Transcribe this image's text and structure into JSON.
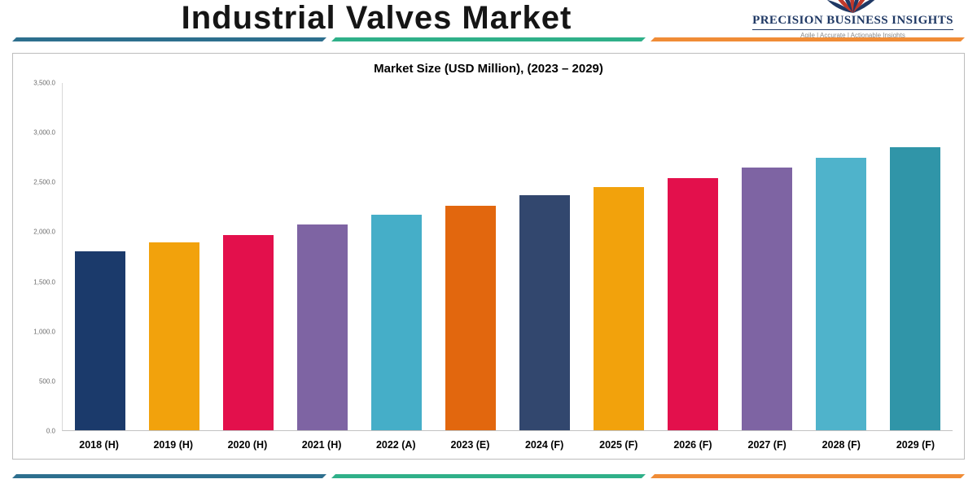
{
  "header": {
    "title": "Industrial Valves Market"
  },
  "brand": {
    "name": "PRECISION BUSINESS INSIGHTS",
    "tagline": "Agile | Accurate | Actionable Insights"
  },
  "chart_data": {
    "type": "bar",
    "title": "Market Size (USD Million), (2023 – 2029)",
    "categories": [
      "2018 (H)",
      "2019 (H)",
      "2020 (H)",
      "2021 (H)",
      "2022 (A)",
      "2023 (E)",
      "2024 (F)",
      "2025 (F)",
      "2026 (F)",
      "2027 (F)",
      "2028 (F)",
      "2029 (F)"
    ],
    "values": [
      1800,
      1890,
      1970,
      2070,
      2170,
      2260,
      2370,
      2450,
      2540,
      2650,
      2750,
      2850
    ],
    "bar_colors": [
      "#1b3a6b",
      "#f2a20c",
      "#e3104c",
      "#7e64a3",
      "#45aec8",
      "#e2670e",
      "#32476e",
      "#f2a20c",
      "#e3104c",
      "#7e64a3",
      "#4fb3cb",
      "#3095a8"
    ],
    "xlabel": "",
    "ylabel": "",
    "ylim": [
      0,
      3500
    ],
    "y_ticks": [
      "3,500.0",
      "3,000.0",
      "2,500.0",
      "2,000.0",
      "1,500.0",
      "1,000.0",
      "500.0",
      "0.0"
    ],
    "grid": false,
    "legend": "none"
  },
  "theme": {
    "divider_colors": [
      "#2d6f8e",
      "#2fb089",
      "#f08c36"
    ],
    "accent_navy": "#1f3864",
    "accent_red": "#c0392b"
  }
}
